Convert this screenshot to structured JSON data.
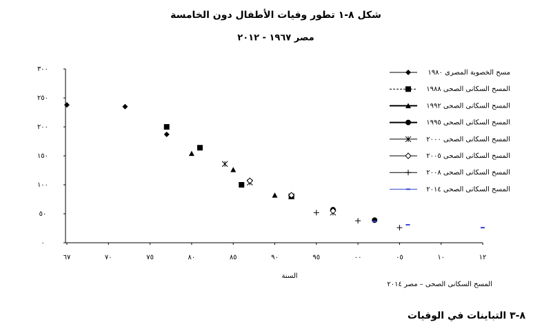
{
  "chart_data": {
    "type": "scatter",
    "title": "شكل ٨-١ تطور وفيات الأطفال دون الخامسة",
    "subtitle": "مصر ١٩٦٧ - ٢٠١٢",
    "x_label": "السنة",
    "source": "المسح السكانى الصحى – مصر ٢٠١٤",
    "xlim": [
      1967,
      2012
    ],
    "xticks": [
      {
        "value": 1967,
        "label": "٦٧"
      },
      {
        "value": 1970,
        "label": "٧٠"
      },
      {
        "value": 1975,
        "label": "٧٥"
      },
      {
        "value": 1980,
        "label": "٨٠"
      },
      {
        "value": 1985,
        "label": "٨٥"
      },
      {
        "value": 1990,
        "label": "٩٠"
      },
      {
        "value": 1995,
        "label": "٩٥"
      },
      {
        "value": 2000,
        "label": "٠٠"
      },
      {
        "value": 2005,
        "label": "٠٥"
      },
      {
        "value": 2010,
        "label": "١٠"
      },
      {
        "value": 2012,
        "label": "١٢"
      }
    ],
    "ylim": [
      0,
      300
    ],
    "yticks": [
      {
        "value": 0,
        "label": "٠"
      },
      {
        "value": 50,
        "label": "٥٠"
      },
      {
        "value": 100,
        "label": "١٠٠"
      },
      {
        "value": 150,
        "label": "١٥٠"
      },
      {
        "value": 200,
        "label": "٢٠٠"
      },
      {
        "value": 250,
        "label": "٢٥٠"
      },
      {
        "value": 300,
        "label": "٣٠٠"
      }
    ],
    "series": [
      {
        "name": "مسح الخصوبة المصرى ١٩٨٠",
        "color": "#000000",
        "marker": "diamond",
        "x": [
          1967,
          1972,
          1977
        ],
        "values": [
          238,
          235,
          187
        ]
      },
      {
        "name": "المسح السكانى الصحى ١٩٨٨",
        "color": "#000000",
        "marker": "square",
        "x": [
          1977,
          1981,
          1986,
          1992
        ],
        "values": [
          200,
          164,
          100,
          80
        ]
      },
      {
        "name": "المسح السكانى الصحى ١٩٩٢",
        "color": "#000000",
        "marker": "triangle",
        "x": [
          1980,
          1985,
          1990,
          1992
        ],
        "values": [
          154,
          126,
          82,
          81
        ]
      },
      {
        "name": "المسح السكانى الصحى ١٩٩٥",
        "color": "#000000",
        "marker": "circle",
        "x": [
          1997,
          2002
        ],
        "values": [
          57,
          39
        ]
      },
      {
        "name": "المسح السكانى الصحى ٢٠٠٠",
        "color": "#000000",
        "marker": "star",
        "x": [
          1984,
          1987,
          1992,
          1997
        ],
        "values": [
          136,
          104,
          80,
          52
        ]
      },
      {
        "name": "المسح السكانى الصحى ٢٠٠٥",
        "color": "#000000",
        "marker": "open-diamond",
        "x": [
          1987,
          1992,
          1997
        ],
        "values": [
          107,
          82,
          55
        ]
      },
      {
        "name": "المسح السكانى الصحى ٢٠٠٨",
        "color": "#000000",
        "marker": "plus",
        "x": [
          1995,
          2000,
          2005
        ],
        "values": [
          52,
          38,
          26
        ]
      },
      {
        "name": "المسح السكانى الصحى ٢٠١٤",
        "color": "#3344cc",
        "marker": "dash",
        "x": [
          2002,
          2006,
          2012
        ],
        "values": [
          37,
          31,
          26
        ]
      }
    ]
  },
  "section_heading": "٨-٣   التباينات في الوفيات"
}
